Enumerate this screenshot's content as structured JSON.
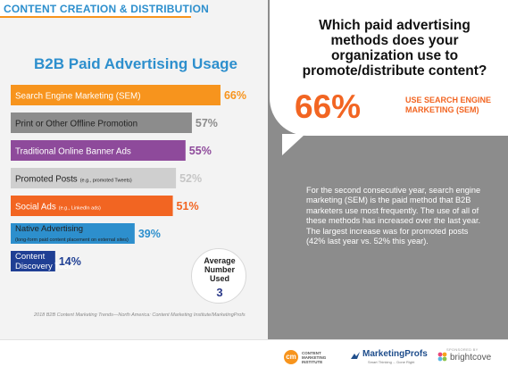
{
  "banner": {
    "label": "CONTENT CREATION & DISTRIBUTION"
  },
  "chart_data": {
    "type": "bar",
    "orientation": "horizontal",
    "title": "B2B Paid Advertising Usage",
    "categories": [
      "Search Engine Marketing (SEM)",
      "Print or Other Offline Promotion",
      "Traditional Online Banner Ads",
      "Promoted Posts",
      "Social Ads",
      "Native Advertising",
      "Content Discovery Tools"
    ],
    "category_notes": [
      "",
      "",
      "",
      "(e.g., promoted Tweets)",
      "(e.g., LinkedIn ads)",
      "(long-form paid content placement on external sites)",
      ""
    ],
    "values": [
      66,
      57,
      55,
      52,
      51,
      39,
      14
    ],
    "value_labels": [
      "66%",
      "57%",
      "55%",
      "52%",
      "51%",
      "39%",
      "14%"
    ],
    "colors": [
      "#f7941d",
      "#8c8c8c",
      "#8e4a9b",
      "#cfcfcf",
      "#f26522",
      "#2d8fcd",
      "#1f3f94"
    ],
    "label_colors": [
      "#f7941d",
      "#8c8c8c",
      "#8e4a9b",
      "#c6c6c6",
      "#f26522",
      "#2d8fcd",
      "#1f3f94"
    ],
    "xlim": [
      0,
      100
    ],
    "grid": false,
    "legend": "none"
  },
  "average": {
    "label": "Average\nNumber\nUsed",
    "value": "3"
  },
  "footnote": "2018 B2B Content Marketing Trends—North America: Content Marketing Institute/MarketingProfs",
  "question": "Which paid advertising\nmethods does your\norganization use to\npromote/distribute content?",
  "highlight": {
    "percent": "66%",
    "label": "USE SEARCH ENGINE\nMARKETING (SEM)",
    "color": "#f26522"
  },
  "body": "For the second consecutive year, search engine\nmarketing (SEM) is the paid method that B2B\nmarketers use most frequently. The use of all of\nthese methods has increased over the last year.\nThe largest increase was for promoted posts\n(42% last year vs. 52% this year).",
  "footer": {
    "cmi_mark": "cm",
    "cmi_text": "CONTENT\nMARKETING\nINSTITUTE",
    "mp_name": "MarketingProfs",
    "mp_tagline": "Smart Thinking ... Done Right",
    "sponsor_label": "SPONSORED BY",
    "bc_name": "brightcove"
  }
}
